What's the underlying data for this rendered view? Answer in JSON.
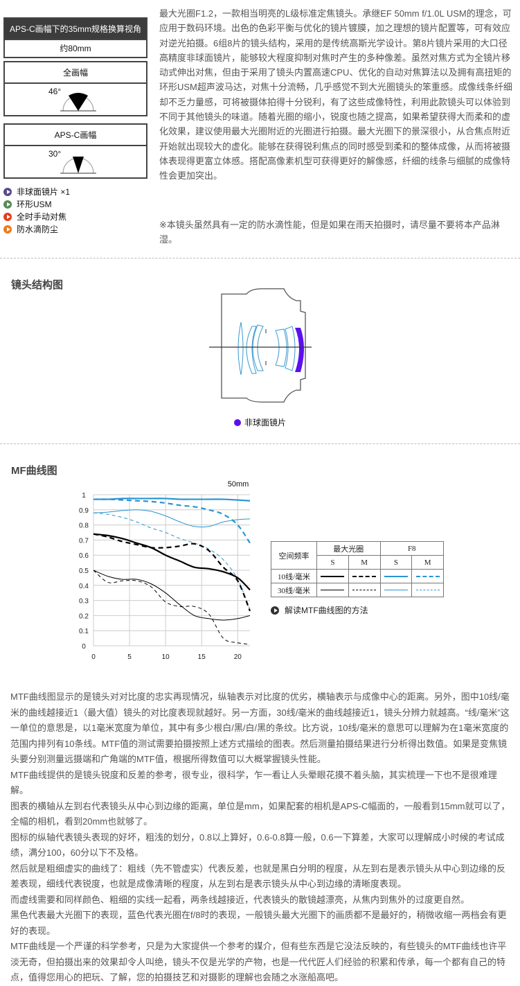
{
  "side": {
    "apsc_box": {
      "title": "APS-C画幅下的35mm规格换算视角",
      "value": "约80mm"
    },
    "full_frame": {
      "title": "全画幅",
      "angle": "46°"
    },
    "apsc_frame": {
      "title": "APS-C画幅",
      "angle": "30°"
    },
    "features": [
      {
        "label": "非球面镜片 ×1",
        "color": "#5a4a8c"
      },
      {
        "label": "环形USM",
        "color": "#5a8a5a"
      },
      {
        "label": "全时手动对焦",
        "color": "#e0401a"
      },
      {
        "label": "防水滴防尘",
        "color": "#f07a1a"
      }
    ]
  },
  "intro": {
    "paragraph": "最大光圈F1.2，一款相当明亮的L级标准定焦镜头。承继EF 50mm f/1.0L USM的理念，可应用于数码环境。出色的色彩平衡与优化的镜片镀膜，加之理想的镜片配置等，可有效应对逆光拍摄。6组8片的镜头结构，采用的是传统高斯光学设计。第8片镜片采用的大口径高精度非球面镜片，能够较大程度抑制对焦时产生的多种像差。虽然对焦方式为全镜片移动式伸出对焦，但由于采用了镜头内置高速CPU、优化的自动对焦算法以及拥有高扭矩的环形USM超声波马达，对焦十分流畅，几乎感觉不到大光圈镜头的笨重感。成像线条纤细却不乏力量感，可将被摄体拍得十分锐利，有了这些成像特性，利用此款镜头可以体验到不同于其他镜头的味道。随着光圈的缩小，锐度也随之提高，如果希望获得大而柔和的虚化效果，建议使用最大光圈附近的光圈进行拍摄。最大光圈下的景深很小，从合焦点附近开始就出现较大的虚化。能够在获得锐利焦点的同时感受到柔和的整体成像，从而将被摄体表现得更富立体感。搭配高像素机型可获得更好的解像感，纤细的线条与细腻的成像特性会更加突出。",
    "note": "※本镜头虽然具有一定的防水滴性能，但是如果在雨天拍摄时，请尽量不要将本产品淋湿。"
  },
  "structure": {
    "title": "镜头结构图",
    "legend": "非球面镜片",
    "aspheric_color": "#5b10f0",
    "lens_color": "#3a9ad0"
  },
  "mtf": {
    "title": "MF曲线图",
    "legend_table": {
      "header_freq": "空间频率",
      "max_aperture": "最大光圈",
      "f8": "F8",
      "s": "S",
      "m": "M",
      "row10": "10线/毫米",
      "row30": "30线/毫米"
    },
    "howto_link": "解读MTF曲线图的方法"
  },
  "chart_data": {
    "type": "line",
    "title": "50mm",
    "xlim": [
      0,
      21.7
    ],
    "ylim": [
      0,
      1
    ],
    "xticks": [
      "0",
      "5",
      "10",
      "15",
      "20"
    ],
    "yticks": [
      "0",
      "0.1",
      "0.2",
      "0.3",
      "0.4",
      "0.5",
      "0.6",
      "0.7",
      "0.8",
      "0.9",
      "1"
    ],
    "grid": true,
    "x": [
      0,
      2,
      4,
      6,
      8,
      10,
      12,
      14,
      16,
      18,
      20,
      21.7
    ],
    "series": [
      {
        "name": "F8 10线/毫米 S",
        "color": "#2a94d0",
        "width": "thick",
        "dash": false,
        "values": [
          0.97,
          0.97,
          0.975,
          0.975,
          0.975,
          0.975,
          0.97,
          0.97,
          0.97,
          0.97,
          0.965,
          0.96
        ]
      },
      {
        "name": "F8 10线/毫米 M",
        "color": "#2a94d0",
        "width": "thick",
        "dash": true,
        "values": [
          0.97,
          0.97,
          0.965,
          0.96,
          0.955,
          0.945,
          0.93,
          0.92,
          0.9,
          0.87,
          0.8,
          0.68
        ]
      },
      {
        "name": "F8 30线/毫米 S",
        "color": "#2a94d0",
        "width": "thin",
        "dash": false,
        "values": [
          0.88,
          0.885,
          0.895,
          0.9,
          0.89,
          0.86,
          0.82,
          0.79,
          0.79,
          0.82,
          0.835,
          0.84
        ]
      },
      {
        "name": "F8 30线/毫米 M",
        "color": "#2a94d0",
        "width": "thin",
        "dash": true,
        "values": [
          0.88,
          0.87,
          0.85,
          0.82,
          0.78,
          0.75,
          0.71,
          0.68,
          0.64,
          0.57,
          0.44,
          0.24
        ]
      },
      {
        "name": "最大光圈 10线/毫米 S",
        "color": "#000000",
        "width": "thick",
        "dash": false,
        "values": [
          0.74,
          0.73,
          0.71,
          0.68,
          0.65,
          0.6,
          0.56,
          0.52,
          0.51,
          0.49,
          0.45,
          0.37
        ]
      },
      {
        "name": "最大光圈 10线/毫米 M",
        "color": "#000000",
        "width": "thick",
        "dash": true,
        "values": [
          0.74,
          0.72,
          0.69,
          0.67,
          0.65,
          0.65,
          0.66,
          0.675,
          0.63,
          0.52,
          0.43,
          0.23
        ]
      },
      {
        "name": "最大光圈 30线/毫米 S",
        "color": "#000000",
        "width": "thin",
        "dash": false,
        "values": [
          0.5,
          0.46,
          0.44,
          0.44,
          0.41,
          0.35,
          0.27,
          0.2,
          0.18,
          0.17,
          0.18,
          0.2
        ]
      },
      {
        "name": "最大光圈 30线/毫米 M",
        "color": "#000000",
        "width": "thin",
        "dash": true,
        "values": [
          0.5,
          0.42,
          0.43,
          0.43,
          0.39,
          0.29,
          0.26,
          0.26,
          0.21,
          0.05,
          0.02,
          0.01
        ]
      }
    ]
  },
  "explain": [
    "MTF曲线图显示的是镜头对对比度的忠实再现情况，纵轴表示对比度的优劣，横轴表示与成像中心的距离。另外，图中10线/毫米的曲线越接近1（最大值）镜头的对比度表现就越好。另一方面，30线/毫米的曲线越接近1，镜头分辨力就越高。“线/毫米”这一单位的意思是，以1毫米宽度为单位，其中有多少根白/黑/白/黑的条纹。比方说，10线/毫米的意思可以理解为在1毫米宽度的范围内排列有10条线。MTF值的测试需要拍摄按照上述方式描绘的图表。然后测量拍摄结果进行分析得出数值。如果是变焦镜头要分别测量远摄端和广角端的MTF值，根据所得数值可以大概掌握镜头性能。",
    "MTF曲线提供的是镜头锐度和反差的参考，很专业，很科学，乍一看让人头晕眼花摸不着头脑，其实梳理一下也不是很难理解。",
    "图表的横轴从左到右代表镜头从中心到边缘的距离，单位是mm，如果配套的相机是APS-C幅面的，一般看到15mm就可以了，全幅的相机，看到20mm也就够了。",
    "图标的纵轴代表镜头表现的好坏，粗浅的划分，0.8以上算好，0.6-0.8算一般，0.6一下算差，大家可以理解成小时候的考试成绩，满分100，60分以下不及格。",
    "然后就是粗细虚实的曲线了：粗线（先不管虚实）代表反差，也就是黑白分明的程度，从左到右是表示镜头从中心到边缘的反差表现，细线代表锐度，也就是成像清晰的程度，从左到右是表示镜头从中心到边缘的清晰度表现。",
    "而虚线需要和同样颜色、粗细的实线一起看，两条线越接近，代表镜头的散镜越漂亮，从焦内到焦外的过度更自然。",
    "黑色代表最大光圈下的表现，蓝色代表光圈在f/8时的表现，一般镜头最大光圈下的画质都不是最好的，稍微收缩一两档会有更好的表现。",
    "MTF曲线是一个严谨的科学参考，只是为大家提供一个参考的媒介，但有些东西是它没法反映的，有些镜头的MTF曲线也许平淡无奇，但拍摄出来的效果却令人叫绝，镜头不仅是光学的产物，也是一代代匠人们经验的积累和传承，每一个都有自己的特点，值得您用心的把玩、了解，您的拍摄技艺和对摄影的理解也会随之水涨船高吧。"
  ]
}
